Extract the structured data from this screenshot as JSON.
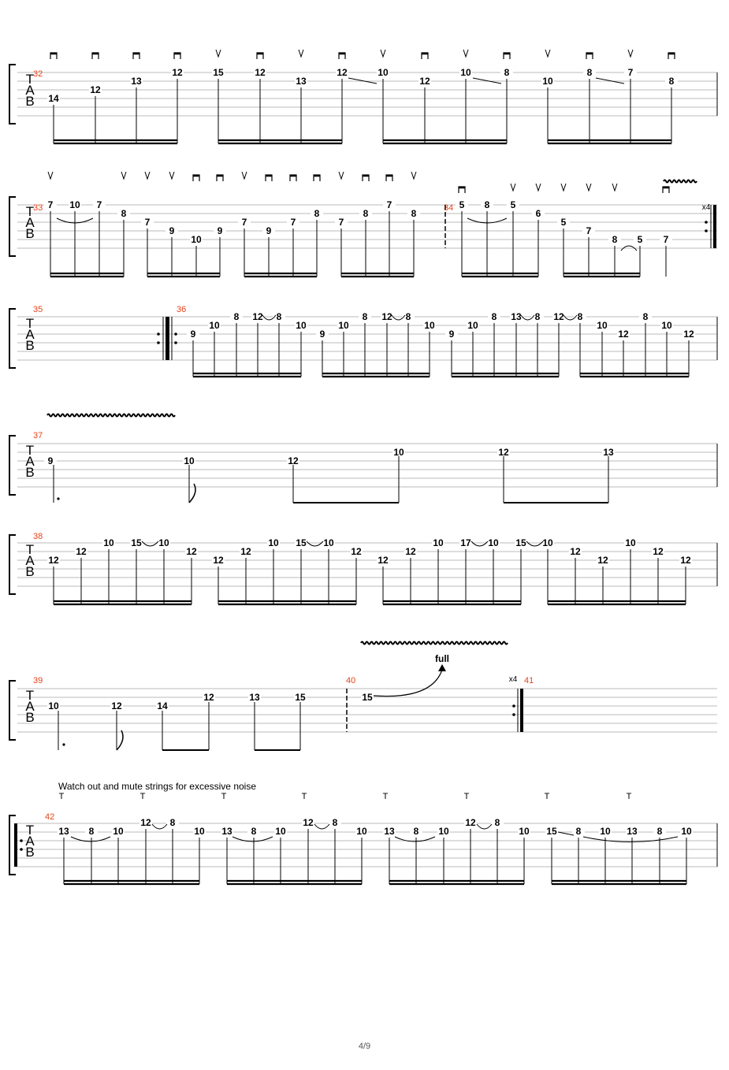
{
  "page_number": "4/9",
  "tab_clef": "TAB",
  "annotation": "Watch out and mute strings for excessive noise",
  "bend_label": "full",
  "repeat_labels": [
    "x4",
    "x4"
  ],
  "measure_numbers": [
    "32",
    "33",
    "34",
    "35",
    "36",
    "37",
    "38",
    "39",
    "40",
    "41",
    "42"
  ],
  "colors": {
    "measure_number": "#e8431a",
    "staff_line": "#bbbbbb",
    "ink": "#000000"
  },
  "systems": [
    {
      "measures": [
        "32"
      ],
      "pick_strokes": [
        "down",
        "down",
        "down",
        "down",
        "up",
        "down",
        "up",
        "down",
        "up",
        "down",
        "up",
        "down",
        "up",
        "down",
        "up",
        "down"
      ],
      "frets": [
        "14",
        "12",
        "13",
        "12",
        "15",
        "12",
        "13",
        "12",
        "10",
        "12",
        "10",
        "8",
        "10",
        "8",
        "7",
        "8"
      ]
    },
    {
      "measures": [
        "33",
        "34"
      ],
      "pick_strokes": [
        "up",
        "up",
        "up",
        "up",
        "down",
        "down",
        "up",
        "down",
        "down",
        "down",
        "up",
        "down",
        "down",
        "up",
        "down",
        "up",
        "up",
        "up",
        "up",
        "up",
        "down"
      ],
      "frets": [
        "7",
        "10",
        "7",
        "8",
        "7",
        "9",
        "10",
        "9",
        "7",
        "9",
        "7",
        "8",
        "7",
        "8",
        "7",
        "8",
        "5",
        "8",
        "5",
        "6",
        "5",
        "7",
        "8",
        "5",
        "7"
      ],
      "repeat": "x4"
    },
    {
      "measures": [
        "35",
        "36"
      ],
      "frets": [
        "9",
        "10",
        "8",
        "12",
        "8",
        "10",
        "9",
        "10",
        "8",
        "12",
        "8",
        "10",
        "9",
        "10",
        "8",
        "13",
        "8",
        "12",
        "8",
        "10",
        "12",
        "8",
        "10",
        "12"
      ]
    },
    {
      "measures": [
        "37"
      ],
      "frets": [
        "9",
        "10",
        "12",
        "10",
        "12",
        "13"
      ]
    },
    {
      "measures": [
        "38"
      ],
      "frets": [
        "12",
        "12",
        "10",
        "15",
        "10",
        "12",
        "12",
        "12",
        "10",
        "15",
        "10",
        "12",
        "12",
        "12",
        "10",
        "17",
        "10",
        "15",
        "10",
        "12",
        "12",
        "10",
        "12",
        "12"
      ]
    },
    {
      "measures": [
        "39",
        "40",
        "41"
      ],
      "frets": [
        "10",
        "12",
        "14",
        "12",
        "13",
        "15",
        "15"
      ],
      "repeat": "x4",
      "bend": "full"
    },
    {
      "measures": [
        "42"
      ],
      "tap_marks": [
        "T",
        "T",
        "T",
        "T",
        "T",
        "T",
        "T",
        "T"
      ],
      "frets": [
        "13",
        "8",
        "10",
        "12",
        "8",
        "10",
        "13",
        "8",
        "10",
        "12",
        "8",
        "10",
        "13",
        "8",
        "10",
        "12",
        "8",
        "10",
        "15",
        "8",
        "10",
        "13",
        "8",
        "10"
      ]
    }
  ]
}
